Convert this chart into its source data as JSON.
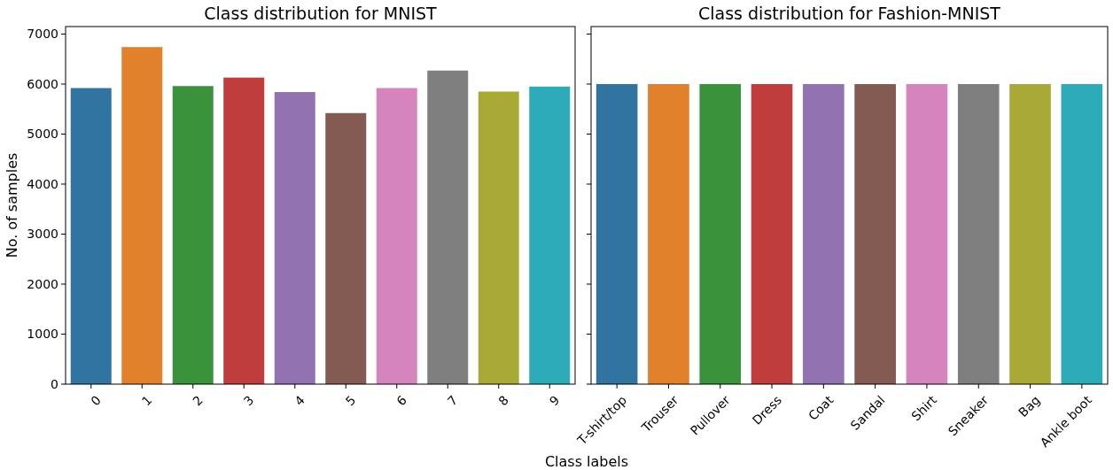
{
  "chart_data": [
    {
      "type": "bar",
      "title": "Class distribution for MNIST",
      "xlabel": "Class labels",
      "ylabel": "No. of samples",
      "categories": [
        "0",
        "1",
        "2",
        "3",
        "4",
        "5",
        "6",
        "7",
        "8",
        "9"
      ],
      "values": [
        5920,
        6740,
        5960,
        6130,
        5840,
        5420,
        5920,
        6270,
        5850,
        5950
      ],
      "colors": [
        "#3274a1",
        "#e1812c",
        "#3a923a",
        "#c03d3e",
        "#9372b2",
        "#845b53",
        "#d684bd",
        "#7f7f7f",
        "#a9aa35",
        "#2eabb8"
      ],
      "ylim": [
        0,
        7150
      ],
      "yticks": [
        0,
        1000,
        2000,
        3000,
        4000,
        5000,
        6000,
        7000
      ],
      "grid": false
    },
    {
      "type": "bar",
      "title": "Class distribution for Fashion-MNIST",
      "categories": [
        "T-shirt/top",
        "Trouser",
        "Pullover",
        "Dress",
        "Coat",
        "Sandal",
        "Shirt",
        "Sneaker",
        "Bag",
        "Ankle boot"
      ],
      "values": [
        6000,
        6000,
        6000,
        6000,
        6000,
        6000,
        6000,
        6000,
        6000,
        6000
      ],
      "colors": [
        "#3274a1",
        "#e1812c",
        "#3a923a",
        "#c03d3e",
        "#9372b2",
        "#845b53",
        "#d684bd",
        "#7f7f7f",
        "#a9aa35",
        "#2eabb8"
      ],
      "ylim": [
        0,
        7150
      ],
      "yticks": [
        0,
        1000,
        2000,
        3000,
        4000,
        5000,
        6000,
        7000
      ],
      "tick_labels": "x",
      "grid": false
    }
  ]
}
